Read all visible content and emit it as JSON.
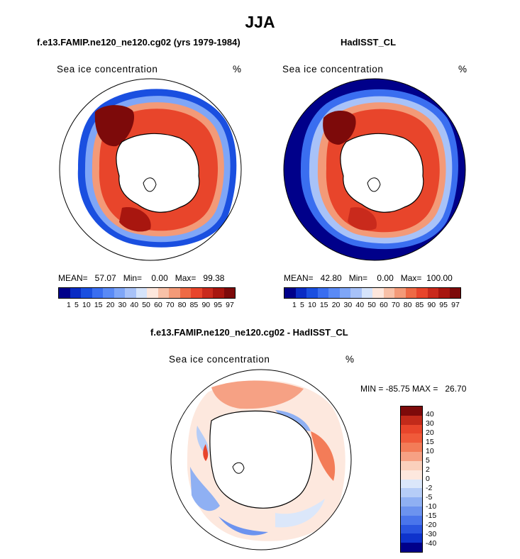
{
  "title": "JJA",
  "panels": {
    "left": {
      "subtitle": "f.e13.FAMIP.ne120_ne120.cg02 (yrs 1979-1984)",
      "variable": "Sea ice concentration",
      "units": "%",
      "stats": "MEAN=   57.07   Min=    0.00   Max=   99.38"
    },
    "right": {
      "subtitle": "HadISST_CL",
      "variable": "Sea ice concentration",
      "units": "%",
      "stats": "MEAN=   42.80   Min=    0.00   Max=  100.00"
    },
    "diff": {
      "subtitle": "f.e13.FAMIP.ne120_ne120.cg02 - HadISST_CL",
      "variable": "Sea ice concentration",
      "units": "%",
      "minmax": "MIN = -85.75 MAX =   26.70"
    }
  },
  "colorbar_levels": {
    "labels": [
      "1",
      "5",
      "10",
      "15",
      "20",
      "30",
      "40",
      "50",
      "60",
      "70",
      "80",
      "85",
      "90",
      "95",
      "97"
    ],
    "colors": [
      "#00008a",
      "#0a2cc4",
      "#1a4fe0",
      "#3a6ef0",
      "#5a8af5",
      "#7fa6f7",
      "#a8c2f8",
      "#d6e4fb",
      "#fde7dd",
      "#f8c1a8",
      "#f39a78",
      "#ee6a45",
      "#e8452b",
      "#c92a1c",
      "#a8160f",
      "#7d0a0a"
    ]
  },
  "diff_colorbar": {
    "labels": [
      "40",
      "30",
      "20",
      "15",
      "10",
      "5",
      "2",
      "0",
      "-2",
      "-5",
      "-10",
      "-15",
      "-20",
      "-30",
      "-40"
    ],
    "colors": [
      "#7d0a0a",
      "#c22a1a",
      "#e8452b",
      "#f05a3a",
      "#f37c58",
      "#f6a184",
      "#fad0bc",
      "#fde8de",
      "#dbe7fa",
      "#b6cdf7",
      "#8fb0f3",
      "#6c93ef",
      "#4a75eb",
      "#2a55e0",
      "#0e33cc",
      "#00008a"
    ]
  }
}
